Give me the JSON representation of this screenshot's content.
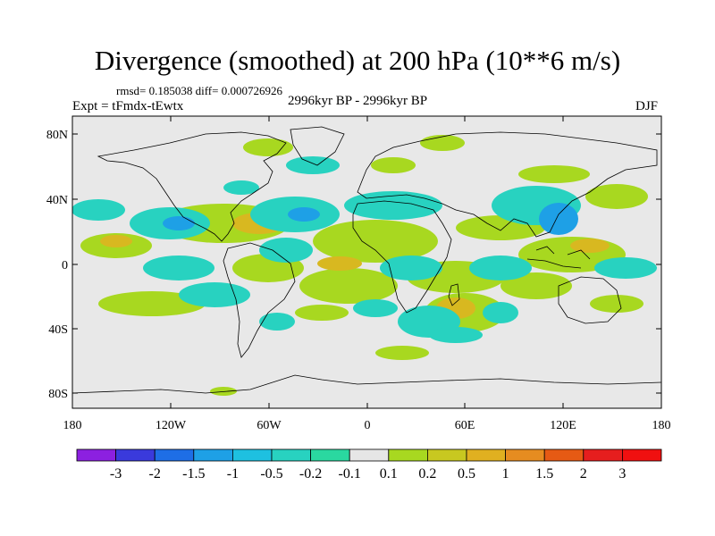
{
  "title": "Divergence (smoothed) at 200 hPa (10**6 m/s)",
  "stats": "rmsd= 0.185038 diff= 0.000726926",
  "expt": "Expt = tFmdx-tEwtx",
  "period": "2996kyr BP - 2996kyr BP",
  "season": "DJF",
  "map": {
    "lat_labels": [
      "80N",
      "40N",
      "0",
      "40S",
      "80S"
    ],
    "lon_labels": [
      "180",
      "120W",
      "60W",
      "0",
      "60E",
      "120E",
      "180"
    ],
    "background_color": "#e8e8e8",
    "coastline_color": "#000000"
  },
  "colorbar": {
    "labels": [
      "-3",
      "-2",
      "-1.5",
      "-1",
      "-0.5",
      "-0.2",
      "-0.1",
      "0.1",
      "0.2",
      "0.5",
      "1",
      "1.5",
      "2",
      "3"
    ],
    "colors": [
      "#8c20e0",
      "#3a3adc",
      "#1e6ee6",
      "#1ea0e6",
      "#1ec0e0",
      "#28d2c0",
      "#2ad8a0",
      "#e6e6e6",
      "#a8d820",
      "#c8c820",
      "#e0b020",
      "#e68c20",
      "#e65a14",
      "#e61e1e",
      "#f01010"
    ]
  }
}
